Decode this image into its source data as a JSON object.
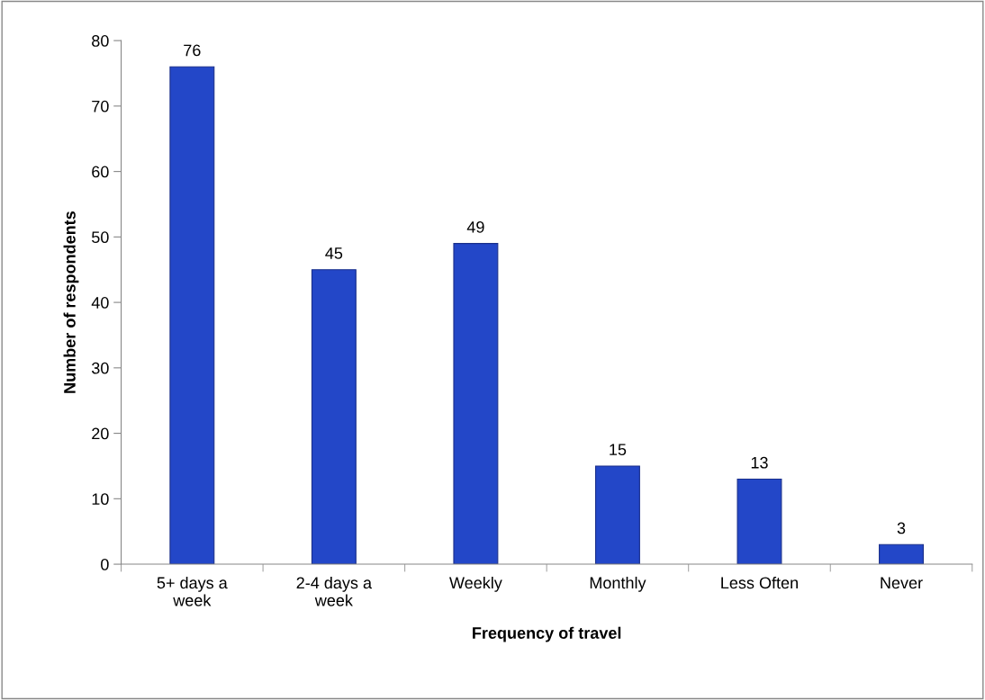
{
  "chart_data": {
    "type": "bar",
    "xlabel": "Frequency of travel",
    "ylabel": "Number of respondents",
    "categories": [
      "5+ days a\nweek",
      "2-4 days a\nweek",
      "Weekly",
      "Monthly",
      "Less Often",
      "Never"
    ],
    "values": [
      76,
      45,
      49,
      15,
      13,
      3
    ],
    "color": "#2347c8",
    "ylim": [
      0,
      80
    ],
    "yticks": [
      0,
      10,
      20,
      30,
      40,
      50,
      60,
      70,
      80
    ],
    "grid": false,
    "data_labels": true,
    "legend": false
  }
}
